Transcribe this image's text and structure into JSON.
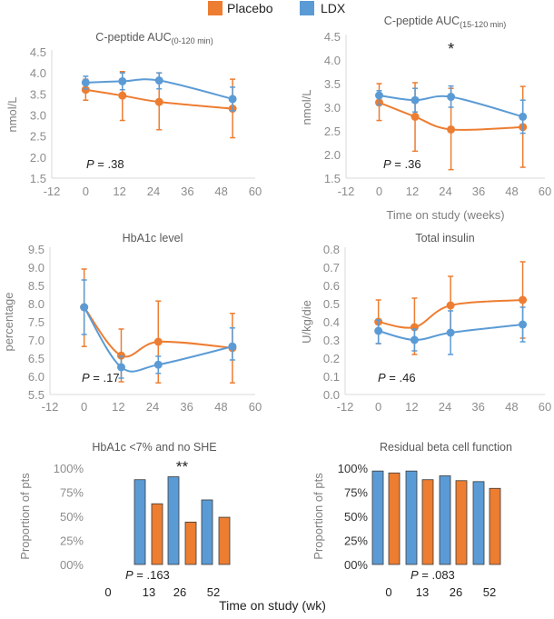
{
  "legend": [
    {
      "name": "Placebo",
      "color": "#ED7D31"
    },
    {
      "name": "LDX",
      "color": "#5B9BD5"
    }
  ],
  "shared_xlabel": "Time on study (wk)",
  "chart_data": [
    {
      "type": "line",
      "title": "C-peptide AUC",
      "title_sub": "(0-120 min)",
      "xlabel": "",
      "ylabel": "nmol/L",
      "xlim": [
        -12,
        60
      ],
      "xticks": [
        "-12",
        "0",
        "12",
        "24",
        "36",
        "48",
        "60"
      ],
      "ylim": [
        1.5,
        4.5
      ],
      "yticks": [
        "1.5",
        "2.0",
        "2.5",
        "3.0",
        "3.5",
        "4.0",
        "4.5"
      ],
      "annotation": "P = .38",
      "x": [
        0,
        13,
        26,
        52
      ],
      "series": [
        {
          "name": "LDX",
          "values": [
            3.77,
            3.8,
            3.82,
            3.38
          ],
          "err_low": [
            3.62,
            3.6,
            3.62,
            3.1
          ],
          "err_high": [
            3.92,
            4.0,
            4.0,
            3.66
          ]
        },
        {
          "name": "Placebo",
          "values": [
            3.6,
            3.46,
            3.31,
            3.15
          ],
          "err_low": [
            3.35,
            2.87,
            2.65,
            2.46
          ],
          "err_high": [
            3.85,
            4.03,
            4.0,
            3.85
          ]
        }
      ]
    },
    {
      "type": "line",
      "title": "C-peptide AUC",
      "title_sub": "(15-120 min)",
      "xlabel": "Time on study (weeks)",
      "ylabel": "nmol/L",
      "xlim": [
        -12,
        60
      ],
      "xticks": [
        "-12",
        "0",
        "12",
        "24",
        "36",
        "48",
        "60"
      ],
      "ylim": [
        1.5,
        4.5
      ],
      "yticks": [
        "1.5",
        "2.0",
        "2.5",
        "3.0",
        "3.5",
        "4.0",
        "4.5"
      ],
      "annotation": "P = .36",
      "significance": {
        "x": 26,
        "label": "*"
      },
      "x": [
        0,
        13,
        26,
        52
      ],
      "series": [
        {
          "name": "LDX",
          "values": [
            3.25,
            3.15,
            3.22,
            2.8
          ],
          "err_low": [
            3.05,
            2.9,
            3.0,
            2.45
          ],
          "err_high": [
            3.35,
            3.4,
            3.45,
            3.15
          ]
        },
        {
          "name": "Placebo",
          "values": [
            3.1,
            2.8,
            2.53,
            2.58
          ],
          "err_low": [
            2.72,
            2.07,
            1.68,
            1.73
          ],
          "err_high": [
            3.5,
            3.52,
            3.4,
            3.44
          ]
        }
      ]
    },
    {
      "type": "line",
      "title": "HbA1c level",
      "xlabel": "",
      "ylabel": "percentage",
      "xlim": [
        -12,
        60
      ],
      "xticks": [
        "-12",
        "0",
        "12",
        "24",
        "36",
        "48",
        "60"
      ],
      "ylim": [
        5.5,
        9.5
      ],
      "yticks": [
        "5.5",
        "6.0",
        "6.5",
        "7.0",
        "7.5",
        "8.0",
        "8.5",
        "9.0",
        "9.5"
      ],
      "annotation": "P = .17",
      "x": [
        0,
        13,
        26,
        52
      ],
      "series": [
        {
          "name": "LDX",
          "values": [
            7.9,
            6.25,
            6.32,
            6.82
          ],
          "err_low": [
            7.15,
            5.95,
            6.08,
            6.45
          ],
          "err_high": [
            8.65,
            6.55,
            6.55,
            7.33
          ]
        },
        {
          "name": "Placebo",
          "values": [
            7.9,
            6.57,
            6.95,
            6.78
          ],
          "err_low": [
            6.82,
            5.85,
            5.82,
            5.82
          ],
          "err_high": [
            8.95,
            7.3,
            8.07,
            7.73
          ]
        }
      ]
    },
    {
      "type": "line",
      "title": "Total insulin",
      "xlabel": "",
      "ylabel": "U/kg/die",
      "xlim": [
        -12,
        60
      ],
      "xticks": [
        "-12",
        "0",
        "12",
        "24",
        "36",
        "48",
        "60"
      ],
      "ylim": [
        0.0,
        0.8
      ],
      "yticks": [
        "0.0",
        "0.1",
        "0.2",
        "0.3",
        "0.4",
        "0.5",
        "0.6",
        "0.7",
        "0.8"
      ],
      "annotation": "P = .46",
      "x": [
        0,
        13,
        26,
        52
      ],
      "series": [
        {
          "name": "LDX",
          "values": [
            0.35,
            0.3,
            0.34,
            0.385
          ],
          "err_low": [
            0.28,
            0.24,
            0.22,
            0.29
          ],
          "err_high": [
            0.41,
            0.36,
            0.46,
            0.48
          ]
        },
        {
          "name": "Placebo",
          "values": [
            0.4,
            0.37,
            0.49,
            0.52
          ],
          "err_low": [
            0.28,
            0.22,
            0.33,
            0.31
          ],
          "err_high": [
            0.52,
            0.53,
            0.65,
            0.73
          ]
        }
      ]
    },
    {
      "type": "bar",
      "title": "HbA1c <7% and no SHE",
      "ylabel": "Proportion of pts",
      "ylim": [
        0,
        100
      ],
      "yticks": [
        "00%",
        "25%",
        "50%",
        "75%",
        "100%"
      ],
      "categories": [
        "0",
        "13",
        "26",
        "52"
      ],
      "annotation": "P = .163",
      "significance": {
        "category": "26",
        "label": "**"
      },
      "bars": [
        {
          "series": "LDX",
          "category": "13",
          "value": 88
        },
        {
          "series": "Placebo",
          "category": "13",
          "value": 63
        },
        {
          "series": "LDX",
          "category": "26",
          "value": 91
        },
        {
          "series": "Placebo",
          "category": "26",
          "value": 44
        },
        {
          "series": "LDX",
          "category": "52",
          "value": 67
        },
        {
          "series": "Placebo",
          "category": "52",
          "value": 49
        }
      ]
    },
    {
      "type": "bar",
      "title": "Residual beta cell function",
      "ylabel": "Proportion of pts",
      "ylim": [
        0,
        100
      ],
      "yticks": [
        "00%",
        "25%",
        "50%",
        "75%",
        "100%"
      ],
      "categories": [
        "0",
        "13",
        "26",
        "52"
      ],
      "annotation": "P = .083",
      "bars": [
        {
          "series": "LDX",
          "category": "0",
          "value": 97
        },
        {
          "series": "Placebo",
          "category": "0",
          "value": 95
        },
        {
          "series": "LDX",
          "category": "13",
          "value": 97
        },
        {
          "series": "Placebo",
          "category": "13",
          "value": 88
        },
        {
          "series": "LDX",
          "category": "26",
          "value": 92
        },
        {
          "series": "Placebo",
          "category": "26",
          "value": 87
        },
        {
          "series": "LDX",
          "category": "52",
          "value": 86
        },
        {
          "series": "Placebo",
          "category": "52",
          "value": 79
        }
      ]
    }
  ]
}
